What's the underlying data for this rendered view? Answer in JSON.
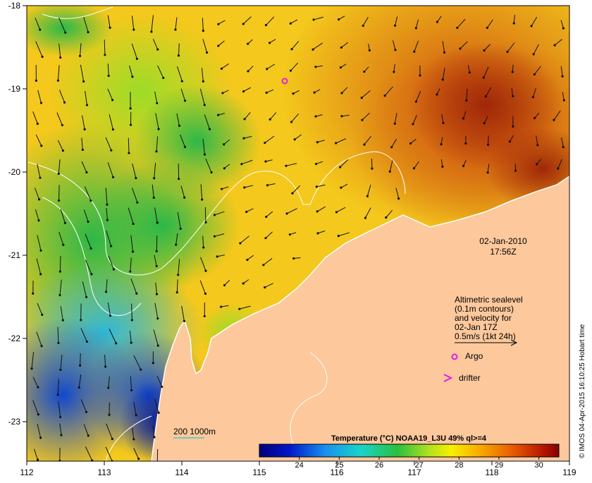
{
  "map": {
    "lon_range": [
      112,
      119
    ],
    "lat_range": [
      -23.5,
      -18
    ],
    "x_ticks": [
      "112",
      "113",
      "114",
      "115",
      "116",
      "117",
      "118",
      "119"
    ],
    "y_ticks": [
      "-18",
      "-19",
      "-20",
      "-21",
      "-22",
      "-23"
    ],
    "land_color": "#fcc89c",
    "sea_level_contour_color": "#ffffff",
    "isobath_color": "#46c8c8"
  },
  "annotation": {
    "date": "02-Jan-2010",
    "time": "17:56Z",
    "altimetry_lines": [
      "Altimetric sealevel",
      "(0.1m contours)",
      "and velocity for",
      "02-Jan 17Z",
      "0.5m/s (1kt 24h)"
    ]
  },
  "legend": {
    "argo_label": "Argo",
    "argo_color": "#e020e0",
    "drifter_label": "drifter",
    "drifter_color": "#e020e0",
    "isobath_label": "200  1000m"
  },
  "colorbar": {
    "title": "Temperature (°C) NOAA19_L3U 49% ql>=4",
    "min": 23,
    "max": 30.5,
    "ticks": [
      "24",
      "25",
      "26",
      "27",
      "28",
      "29",
      "30"
    ]
  },
  "credit": "© IMOS 04-Apr-2015 16:10:25 Hobart time"
}
